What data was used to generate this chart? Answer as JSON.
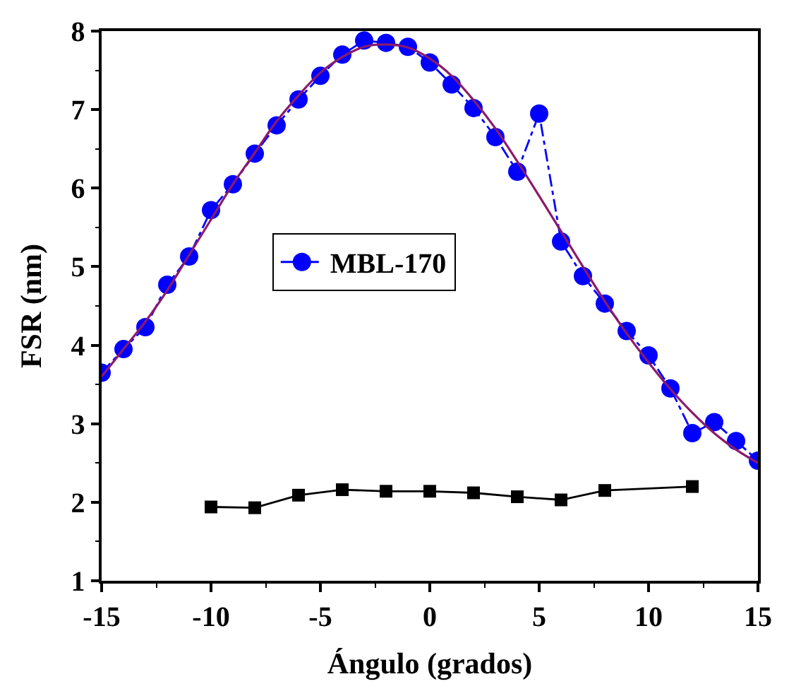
{
  "chart_data": {
    "type": "line",
    "xlabel": "Ángulo (grados)",
    "ylabel": "FSR (nm)",
    "xlim": [
      -15,
      15
    ],
    "xticks": [
      -15,
      -10,
      -5,
      0,
      5,
      10,
      15
    ],
    "ylim": [
      1,
      8
    ],
    "yticks": [
      1,
      2,
      3,
      4,
      5,
      6,
      7,
      8
    ],
    "legend": "center",
    "series": [
      {
        "color": "#000000",
        "marker": "square",
        "line_style": "solid",
        "x": [
          -10,
          -8,
          -6,
          -4,
          -2,
          0,
          2,
          4,
          6,
          8,
          12
        ],
        "values": [
          1.94,
          1.93,
          2.09,
          2.16,
          2.14,
          2.14,
          2.12,
          2.07,
          2.03,
          2.15,
          2.2
        ]
      },
      {
        "name": "MBL-170",
        "color": "#0000ff",
        "marker": "circle",
        "line_style": "dashed",
        "x": [
          -15,
          -14,
          -13,
          -12,
          -11,
          -10,
          -9,
          -8,
          -7,
          -6,
          -5,
          -4,
          -3,
          -2,
          -1,
          0,
          1,
          2,
          3,
          4,
          5,
          6,
          7,
          8,
          9,
          10,
          11,
          12,
          13,
          14,
          15
        ],
        "values": [
          3.65,
          3.95,
          4.23,
          4.77,
          5.13,
          5.72,
          6.05,
          6.44,
          6.8,
          7.13,
          7.43,
          7.7,
          7.88,
          7.85,
          7.8,
          7.6,
          7.32,
          7.02,
          6.65,
          6.21,
          6.95,
          5.32,
          4.88,
          4.53,
          4.18,
          3.87,
          3.45,
          2.88,
          3.02,
          2.78,
          2.53
        ]
      },
      {
        "color": "#8b1a6b",
        "marker": "none",
        "line_style": "solid",
        "x": [
          -15,
          -14,
          -13,
          -12,
          -11,
          -10,
          -9,
          -8,
          -7,
          -6,
          -5,
          -4,
          -3,
          -2,
          -1,
          0,
          1,
          2,
          3,
          4,
          5,
          6,
          7,
          8,
          9,
          10,
          11,
          12,
          13,
          14,
          15
        ],
        "values": [
          3.6,
          3.95,
          4.3,
          4.7,
          5.15,
          5.6,
          6.05,
          6.45,
          6.85,
          7.18,
          7.47,
          7.67,
          7.8,
          7.83,
          7.79,
          7.65,
          7.43,
          7.12,
          6.76,
          6.34,
          5.9,
          5.45,
          5.0,
          4.56,
          4.15,
          3.78,
          3.44,
          3.14,
          2.88,
          2.67,
          2.5
        ]
      }
    ]
  }
}
